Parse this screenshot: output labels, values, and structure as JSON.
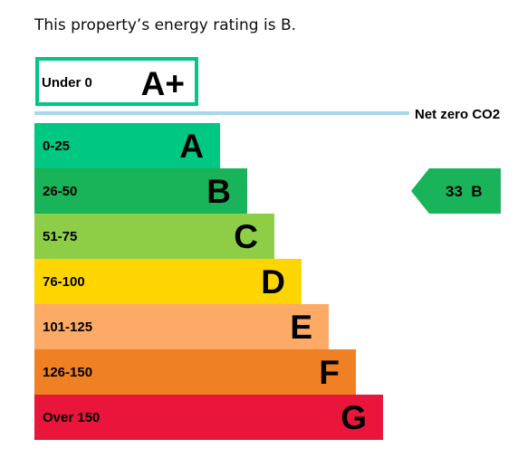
{
  "intro_text": "This property’s energy rating is B.",
  "chart_data": {
    "type": "bar",
    "title": "",
    "aplus": {
      "range": "Under 0",
      "letter": "A+",
      "color": "#00c781"
    },
    "net_zero_label": "Net zero CO2",
    "net_zero_color": "#a8d8e5",
    "categories": [
      "A",
      "B",
      "C",
      "D",
      "E",
      "F",
      "G"
    ],
    "bands": [
      {
        "letter": "A",
        "range": "0-25",
        "color": "#00c781",
        "text_color": "#000000"
      },
      {
        "letter": "B",
        "range": "26-50",
        "color": "#19b459",
        "text_color": "#000000"
      },
      {
        "letter": "C",
        "range": "51-75",
        "color": "#8dce46",
        "text_color": "#000000"
      },
      {
        "letter": "D",
        "range": "76-100",
        "color": "#ffd500",
        "text_color": "#000000"
      },
      {
        "letter": "E",
        "range": "101-125",
        "color": "#fcaa65",
        "text_color": "#000000"
      },
      {
        "letter": "F",
        "range": "126-150",
        "color": "#ef8023",
        "text_color": "#000000"
      },
      {
        "letter": "G",
        "range": "Over 150",
        "color": "#e9153b",
        "text_color": "#000000"
      }
    ],
    "current": {
      "value": 33,
      "letter": "B",
      "label": "33  B",
      "color": "#19b459"
    }
  }
}
